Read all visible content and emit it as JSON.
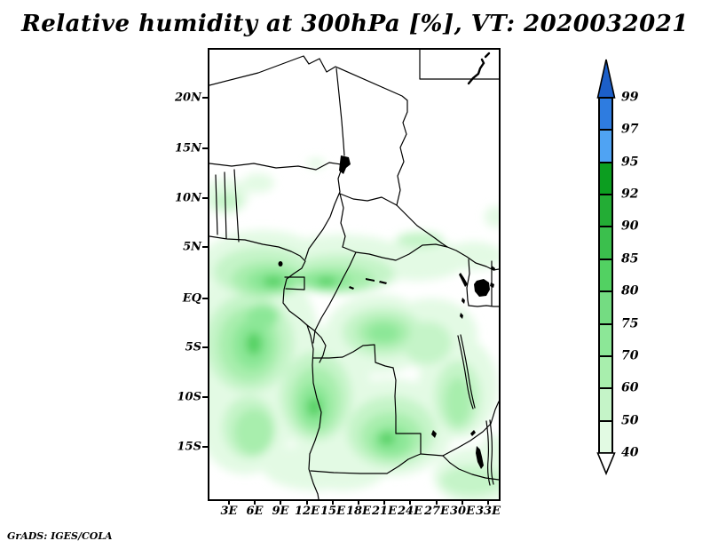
{
  "title": "Relative humidity at 300hPa [%], VT: 2020032021",
  "credit": "GrADS: IGES/COLA",
  "axes": {
    "lat_tick_labels": [
      "20N",
      "15N",
      "10N",
      "5N",
      "EQ",
      "5S",
      "10S",
      "15S"
    ],
    "lon_tick_labels": [
      "3E",
      "6E",
      "9E",
      "12E",
      "15E",
      "18E",
      "21E",
      "24E",
      "27E",
      "30E",
      "33E"
    ]
  },
  "colorbar": {
    "tick_labels": [
      "99",
      "97",
      "95",
      "92",
      "90",
      "85",
      "80",
      "75",
      "70",
      "60",
      "50",
      "40"
    ],
    "segment_colors_top_to_bottom": [
      "#2e7ce0",
      "#4fa3f3",
      "#0c9e20",
      "#23ad35",
      "#3bbf4d",
      "#52d162",
      "#74dc82",
      "#8ce797",
      "#a8eead",
      "#c5f4c8",
      "#e2fae3"
    ],
    "arrow_top_color": "#1c5fc9",
    "arrow_bottom_color": "#ffffff"
  },
  "chart_data": {
    "type": "heatmap",
    "title": "Relative humidity at 300hPa [%], VT: 2020032021",
    "variable": "Relative humidity",
    "pressure_level": "300hPa",
    "units": "%",
    "valid_time": "2020032021",
    "x_axis": {
      "tick_labels": [
        "3E",
        "6E",
        "9E",
        "12E",
        "15E",
        "18E",
        "21E",
        "24E",
        "27E",
        "30E",
        "33E"
      ],
      "range_deg_east": [
        0.6,
        34.2
      ]
    },
    "y_axis": {
      "tick_labels": [
        "20N",
        "15N",
        "10N",
        "5N",
        "EQ",
        "5S",
        "10S",
        "15S"
      ],
      "range_deg_north": [
        -20.3,
        24.9
      ]
    },
    "colorbar_levels_low_to_high": [
      40,
      50,
      60,
      70,
      75,
      80,
      85,
      90,
      92,
      95,
      97,
      99
    ],
    "colorbar_colors_low_to_high": [
      "#ffffff",
      "#e2fae3",
      "#c5f4c8",
      "#a8eead",
      "#8ce797",
      "#74dc82",
      "#52d162",
      "#3bbf4d",
      "#23ad35",
      "#0c9e20",
      "#4fa3f3",
      "#2e7ce0",
      "#1c5fc9"
    ],
    "legend_position": "right vertical colorbar with open-ended arrows",
    "grid": false,
    "field_summary": "Green filled contours (mostly 40-85%) cover equatorial/central Africa south of about 5N; strongest shading near the Gulf of Guinea coast, Gabon/Congo, central DRC and Angola; area north of 5N and the far east remain largely below 40% (white).",
    "basemap": "Central Africa political boundaries with lakes (Chad, Victoria, Albert, Tanganyika, Malawi) drawn in black",
    "attribution": "GrADS: IGES/COLA"
  }
}
